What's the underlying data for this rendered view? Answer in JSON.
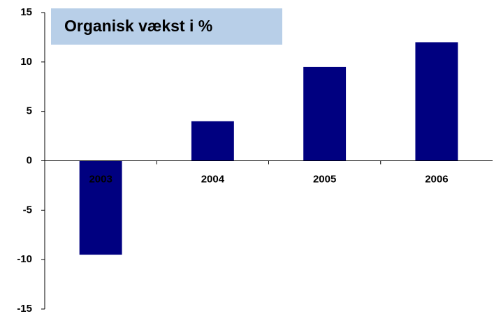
{
  "chart_data": {
    "type": "bar",
    "title": "Organisk vækst i %",
    "categories": [
      "2003",
      "2004",
      "2005",
      "2006"
    ],
    "values": [
      -9.5,
      4,
      9.5,
      12
    ],
    "color": "#000080",
    "ylim": [
      -15,
      15
    ],
    "yticks": [
      -15,
      -10,
      -5,
      0,
      5,
      10,
      15
    ],
    "grid": false
  }
}
